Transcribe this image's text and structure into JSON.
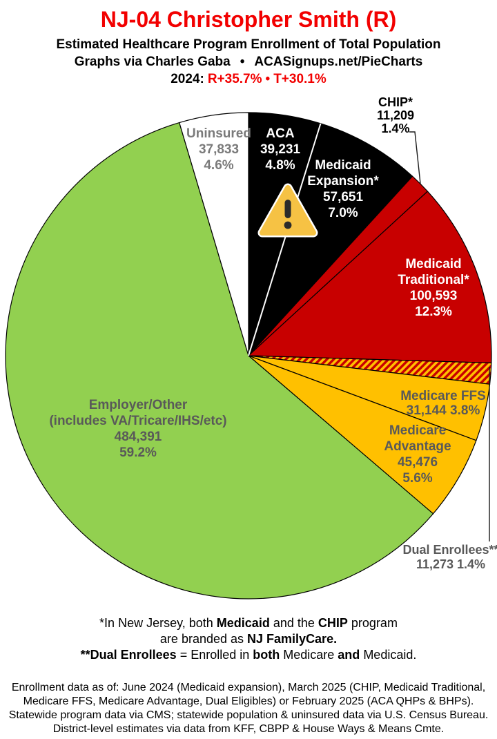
{
  "header": {
    "title": "NJ-04 Christopher Smith (R)",
    "title_color": "#f20000",
    "subtitle1": "Estimated Healthcare Program Enrollment of Total Population",
    "credit_left": "Graphs via Charles Gaba",
    "credit_bullet": "•",
    "credit_right": "ACASignups.net/PieCharts",
    "partisan_label": "2024:",
    "partisan_r": "R+35.7%",
    "partisan_bullet": "•",
    "partisan_t": "T+30.1%",
    "partisan_color": "#f20000"
  },
  "chart_data": {
    "type": "pie",
    "start_angle_deg": 0,
    "direction": "clockwise",
    "units": "people",
    "hatch_colors": [
      "#c80000",
      "#ffc000"
    ],
    "slices": [
      {
        "label": "ACA",
        "value": 39231,
        "display_value": "39,231",
        "pct": 4.8,
        "color": "#000000",
        "text_color": "#ffffff",
        "lines": [
          "ACA",
          "39,231",
          "4.8%"
        ]
      },
      {
        "label": "Medicaid Expansion*",
        "value": 57651,
        "display_value": "57,651",
        "pct": 7.0,
        "color": "#000000",
        "text_color": "#ffffff",
        "lines": [
          "Medicaid",
          "Expansion*",
          "57,651",
          "7.0%"
        ]
      },
      {
        "label": "CHIP*",
        "value": 11209,
        "display_value": "11,209",
        "pct": 1.4,
        "color": "#c80000",
        "text_color": "#000000",
        "callout": true,
        "lines": [
          "CHIP*",
          "11,209",
          "1.4%"
        ]
      },
      {
        "label": "Medicaid Traditional*",
        "value": 100593,
        "display_value": "100,593",
        "pct": 12.3,
        "color": "#c80000",
        "text_color": "#ffffff",
        "lines": [
          "Medicaid",
          "Traditional*",
          "100,593",
          "12.3%"
        ]
      },
      {
        "label": "Dual Enrollees**",
        "value": 11273,
        "display_value": "11,273",
        "pct": 1.4,
        "color": "hatch",
        "text_color": "#595959",
        "callout": true,
        "lines": [
          "Dual Enrollees**",
          "11,273 1.4%"
        ]
      },
      {
        "label": "Medicare FFS",
        "value": 31144,
        "display_value": "31,144",
        "pct": 3.8,
        "color": "#ffc000",
        "text_color": "#595959",
        "lines": [
          "Medicare FFS",
          "31,144 3.8%"
        ]
      },
      {
        "label": "Medicare Advantage",
        "value": 45476,
        "display_value": "45,476",
        "pct": 5.6,
        "color": "#ffc000",
        "text_color": "#595959",
        "lines": [
          "Medicare",
          "Advantage",
          "45,476",
          "5.6%"
        ]
      },
      {
        "label": "Employer/Other",
        "value": 484391,
        "display_value": "484,391",
        "pct": 59.2,
        "color": "#92d050",
        "text_color": "#595959",
        "lines": [
          "Employer/Other",
          "(includes VA/Tricare/IHS/etc)",
          "484,391",
          "59.2%"
        ]
      },
      {
        "label": "Uninsured",
        "value": 37833,
        "display_value": "37,833",
        "pct": 4.6,
        "color": "#ffffff",
        "text_color": "#7a7a7a",
        "lines": [
          "Uninsured",
          "37,833",
          "4.6%"
        ]
      }
    ]
  },
  "warning_icon": {
    "name": "warning-triangle",
    "body_color": "#f6c244",
    "mark_color": "#2b2b2b"
  },
  "footnotes": {
    "note1": [
      {
        "t": "*In New Jersey, both "
      },
      {
        "t": "Medicaid",
        "b": true
      },
      {
        "t": " and the "
      },
      {
        "t": "CHIP",
        "b": true
      },
      {
        "t": " program"
      }
    ],
    "note2": [
      {
        "t": "are branded as "
      },
      {
        "t": "NJ FamilyCare.",
        "b": true
      }
    ],
    "note3": [
      {
        "t": "**Dual Enrollees",
        "b": true
      },
      {
        "t": " = Enrolled in "
      },
      {
        "t": "both",
        "b": true
      },
      {
        "t": " Medicare "
      },
      {
        "t": "and",
        "b": true
      },
      {
        "t": " Medicaid."
      }
    ],
    "source_lines": [
      "Enrollment data as of: June 2024 (Medicaid expansion), March 2025 (CHIP, Medicaid Traditional,",
      "Medicare FFS, Medicare Advantage, Dual Eligibles) or February 2025 (ACA QHPs & BHPs).",
      "Statewide program data via CMS; statewide population & uninsured data via U.S. Census Bureau.",
      "District-level estimates via data from KFF, CBPP & House Ways & Means Cmte."
    ]
  }
}
